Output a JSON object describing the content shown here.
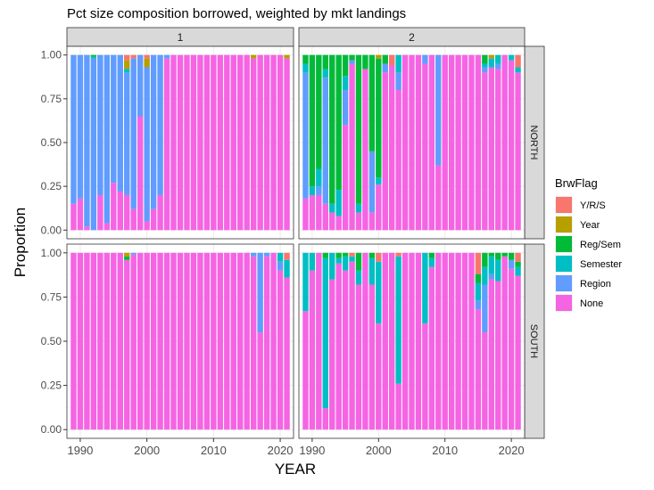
{
  "chart_data": {
    "type": "bar",
    "stacked": true,
    "title": "Pct size composition borrowed, weighted by mkt landings",
    "xlabel": "YEAR",
    "ylabel": "Proportion",
    "ylim": [
      0,
      1
    ],
    "xlim": [
      1988,
      2022
    ],
    "x_ticks": [
      "1990",
      "2000",
      "2010",
      "2020"
    ],
    "y_ticks": [
      "0.00",
      "0.25",
      "0.50",
      "0.75",
      "1.00"
    ],
    "grid": true,
    "column_facets": [
      "1",
      "2"
    ],
    "row_facets": [
      "NORTH",
      "SOUTH"
    ],
    "legend": {
      "title": "BrwFlag",
      "position": "right",
      "entries": [
        {
          "label": "Y/R/S",
          "color": "#F8766D"
        },
        {
          "label": "Year",
          "color": "#B79F00"
        },
        {
          "label": "Reg/Sem",
          "color": "#00BA38"
        },
        {
          "label": "Semester",
          "color": "#00BFC4"
        },
        {
          "label": "Region",
          "color": "#619CFF"
        },
        {
          "label": "None",
          "color": "#F564E3"
        }
      ]
    },
    "years": [
      1989,
      1990,
      1991,
      1992,
      1993,
      1994,
      1995,
      1996,
      1997,
      1998,
      1999,
      2000,
      2001,
      2002,
      2003,
      2004,
      2005,
      2006,
      2007,
      2008,
      2009,
      2010,
      2011,
      2012,
      2013,
      2014,
      2015,
      2016,
      2017,
      2018,
      2019,
      2020,
      2021
    ],
    "panels": [
      {
        "col": "1",
        "row": "NORTH",
        "series": {
          "Y/R/S": [
            0,
            0,
            0,
            0,
            0,
            0,
            0,
            0,
            0.03,
            0.02,
            0,
            0.02,
            0,
            0,
            0,
            0,
            0,
            0,
            0,
            0,
            0,
            0,
            0,
            0,
            0,
            0,
            0,
            0,
            0,
            0,
            0,
            0,
            0
          ],
          "Year": [
            0,
            0,
            0,
            0,
            0,
            0,
            0,
            0,
            0.05,
            0,
            0,
            0.05,
            0,
            0,
            0,
            0,
            0,
            0,
            0,
            0,
            0,
            0,
            0,
            0,
            0,
            0,
            0,
            0.02,
            0,
            0,
            0,
            0,
            0.02
          ],
          "Reg/Sem": [
            0,
            0,
            0,
            0.01,
            0,
            0,
            0,
            0,
            0,
            0,
            0,
            0,
            0,
            0,
            0,
            0,
            0,
            0,
            0,
            0,
            0,
            0,
            0,
            0,
            0,
            0,
            0,
            0,
            0,
            0,
            0,
            0,
            0
          ],
          "Semester": [
            0,
            0,
            0,
            0.01,
            0,
            0,
            0,
            0,
            0.02,
            0,
            0,
            0,
            0,
            0,
            0,
            0,
            0,
            0,
            0,
            0,
            0,
            0,
            0,
            0,
            0,
            0,
            0,
            0,
            0,
            0,
            0,
            0,
            0
          ],
          "Region": [
            0.85,
            0.82,
            0.98,
            0.98,
            0.8,
            0.96,
            0.73,
            0.78,
            0.7,
            0.86,
            0.35,
            0.88,
            0.88,
            0.8,
            0.02,
            0,
            0,
            0,
            0,
            0,
            0,
            0,
            0,
            0,
            0,
            0,
            0,
            0,
            0,
            0,
            0,
            0,
            0
          ],
          "None": [
            0.15,
            0.18,
            0.02,
            0,
            0.2,
            0.04,
            0.27,
            0.22,
            0.2,
            0.12,
            0.65,
            0.05,
            0.12,
            0.2,
            0.98,
            1,
            1,
            1,
            1,
            1,
            1,
            1,
            1,
            1,
            1,
            1,
            1,
            0.98,
            1,
            1,
            1,
            1,
            0.98
          ]
        }
      },
      {
        "col": "2",
        "row": "NORTH",
        "series": {
          "Y/R/S": [
            0,
            0,
            0,
            0,
            0,
            0,
            0,
            0,
            0,
            0,
            0,
            0,
            0,
            0.06,
            0,
            0,
            0,
            0,
            0,
            0,
            0,
            0,
            0,
            0,
            0,
            0,
            0,
            0,
            0,
            0,
            0,
            0,
            0.07
          ],
          "Year": [
            0,
            0,
            0,
            0,
            0,
            0,
            0,
            0,
            0,
            0,
            0,
            0.02,
            0,
            0,
            0,
            0,
            0,
            0,
            0,
            0,
            0,
            0,
            0,
            0,
            0,
            0,
            0,
            0,
            0.02,
            0,
            0,
            0,
            0
          ],
          "Reg/Sem": [
            0.05,
            0.75,
            0.65,
            0.08,
            0.85,
            0.77,
            0.12,
            0.03,
            0.85,
            0.08,
            0.55,
            0.68,
            0.05,
            0,
            0,
            0,
            0,
            0,
            0,
            0,
            0,
            0,
            0,
            0,
            0,
            0,
            0,
            0.05,
            0,
            0,
            0,
            0,
            0
          ],
          "Semester": [
            0.05,
            0.05,
            0.1,
            0.05,
            0.05,
            0.15,
            0.08,
            0,
            0.05,
            0,
            0,
            0.04,
            0,
            0,
            0.1,
            0,
            0,
            0,
            0,
            0,
            0,
            0,
            0,
            0,
            0,
            0,
            0,
            0.02,
            0.05,
            0.05,
            0,
            0.03,
            0.03
          ],
          "Region": [
            0.72,
            0,
            0.05,
            0.72,
            0,
            0,
            0.2,
            0.02,
            0,
            0,
            0.35,
            0,
            0.05,
            0,
            0.1,
            0,
            0,
            0,
            0.05,
            0,
            0.63,
            0,
            0,
            0,
            0,
            0,
            0,
            0.03,
            0,
            0.03,
            0,
            0,
            0
          ],
          "None": [
            0.18,
            0.2,
            0.2,
            0.15,
            0.1,
            0.08,
            0.6,
            0.95,
            0.1,
            0.92,
            0.1,
            0.26,
            0.9,
            0.94,
            0.8,
            1,
            1,
            1,
            0.95,
            1,
            0.37,
            1,
            1,
            1,
            1,
            1,
            1,
            0.9,
            0.93,
            0.92,
            1,
            0.97,
            0.9
          ]
        }
      },
      {
        "col": "1",
        "row": "SOUTH",
        "series": {
          "Y/R/S": [
            0,
            0,
            0,
            0,
            0,
            0,
            0,
            0,
            0,
            0,
            0,
            0,
            0,
            0,
            0,
            0,
            0,
            0,
            0,
            0,
            0,
            0,
            0,
            0,
            0,
            0,
            0,
            0,
            0,
            0,
            0,
            0,
            0.04
          ],
          "Year": [
            0,
            0,
            0,
            0,
            0,
            0,
            0,
            0,
            0.02,
            0,
            0,
            0,
            0,
            0,
            0,
            0,
            0,
            0,
            0,
            0,
            0,
            0,
            0,
            0,
            0,
            0,
            0,
            0,
            0,
            0,
            0,
            0,
            0
          ],
          "Reg/Sem": [
            0,
            0,
            0,
            0,
            0,
            0,
            0,
            0,
            0.02,
            0,
            0,
            0,
            0,
            0,
            0,
            0,
            0,
            0,
            0,
            0,
            0,
            0,
            0,
            0,
            0,
            0,
            0,
            0,
            0,
            0,
            0,
            0,
            0
          ],
          "Semester": [
            0,
            0,
            0,
            0,
            0,
            0,
            0,
            0,
            0,
            0,
            0,
            0,
            0,
            0,
            0,
            0,
            0,
            0,
            0,
            0,
            0,
            0,
            0,
            0,
            0,
            0,
            0,
            0,
            0,
            0,
            0,
            0.05,
            0.1
          ],
          "Region": [
            0,
            0,
            0,
            0,
            0,
            0,
            0,
            0,
            0,
            0.01,
            0,
            0,
            0,
            0,
            0,
            0,
            0,
            0,
            0,
            0,
            0,
            0,
            0,
            0,
            0,
            0,
            0,
            0.02,
            0.45,
            0.02,
            0,
            0.05,
            0
          ],
          "None": [
            1,
            1,
            1,
            1,
            1,
            1,
            1,
            1,
            0.96,
            0.99,
            1,
            1,
            1,
            1,
            1,
            1,
            1,
            1,
            1,
            1,
            1,
            1,
            1,
            1,
            1,
            1,
            1,
            0.98,
            0.55,
            0.98,
            1,
            0.9,
            0.86
          ]
        }
      },
      {
        "col": "2",
        "row": "SOUTH",
        "series": {
          "Y/R/S": [
            0,
            0,
            0,
            0,
            0,
            0,
            0,
            0.02,
            0,
            0,
            0,
            0.05,
            0,
            0,
            0.02,
            0,
            0,
            0,
            0,
            0,
            0,
            0,
            0,
            0,
            0,
            0,
            0.12,
            0,
            0,
            0,
            0,
            0,
            0.05
          ],
          "Year": [
            0,
            0,
            0,
            0,
            0,
            0,
            0,
            0,
            0,
            0,
            0,
            0,
            0,
            0,
            0,
            0,
            0,
            0,
            0,
            0,
            0,
            0,
            0,
            0,
            0,
            0,
            0,
            0,
            0,
            0,
            0,
            0,
            0
          ],
          "Reg/Sem": [
            0,
            0,
            0,
            0.03,
            0,
            0.03,
            0.02,
            0,
            0.1,
            0,
            0.03,
            0,
            0,
            0,
            0,
            0,
            0,
            0,
            0,
            0.03,
            0,
            0,
            0,
            0,
            0,
            0,
            0.05,
            0.08,
            0.02,
            0.04,
            0.02,
            0.04,
            0.03
          ],
          "Semester": [
            0.33,
            0.1,
            0,
            0.85,
            0.15,
            0.03,
            0.08,
            0.03,
            0.08,
            0,
            0.15,
            0.35,
            0,
            0,
            0.72,
            0,
            0,
            0,
            0.4,
            0.05,
            0,
            0,
            0,
            0,
            0,
            0,
            0.1,
            0.1,
            0.1,
            0.12,
            0,
            0,
            0.05
          ],
          "Region": [
            0,
            0,
            0,
            0,
            0,
            0,
            0,
            0,
            0,
            0,
            0,
            0,
            0,
            0,
            0,
            0,
            0,
            0,
            0,
            0,
            0,
            0,
            0,
            0,
            0,
            0,
            0.05,
            0.27,
            0.03,
            0,
            0,
            0.05,
            0
          ],
          "None": [
            0.67,
            0.9,
            1,
            0.12,
            0.85,
            0.94,
            0.9,
            0.95,
            0.82,
            1,
            0.82,
            0.6,
            1,
            1,
            0.26,
            1,
            1,
            1,
            0.6,
            0.92,
            1,
            1,
            1,
            1,
            1,
            1,
            0.68,
            0.55,
            0.85,
            0.84,
            0.98,
            0.91,
            0.87
          ]
        }
      }
    ]
  }
}
